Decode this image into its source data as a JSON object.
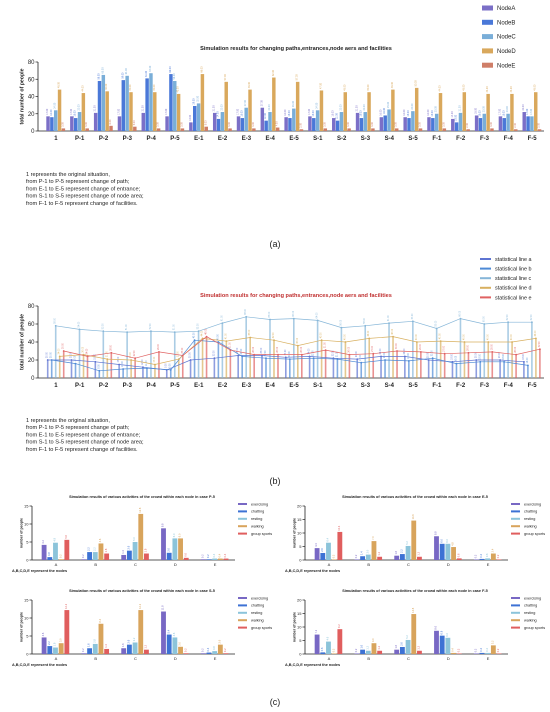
{
  "colors": {
    "A": "#7b6fc7",
    "B": "#4a78d8",
    "C": "#7aaed8",
    "D": "#d9a85c",
    "E": "#cf7e68",
    "lb": "#4d8ad6",
    "la": "#5e74d2",
    "lc": "#86b6d8",
    "ld": "#d8b060",
    "le": "#e06262",
    "act1": "#7868c4",
    "act2": "#3d72d4",
    "act3": "#8cc4da",
    "act4": "#d8a45c",
    "act5": "#e05e5e"
  },
  "panel_a": {
    "title": "Simulation results for changing paths,entrances,node aers and facilities",
    "ylabel": "total number of people",
    "notes": [
      "1 represents the original situation,",
      "from P-1 to P-5 represent change of path;",
      "from E-1 to E-5 represent change of entrance;",
      "from S-1 to S-5 represent change of node area;",
      "from F-1 to F-5 represent change of facilities."
    ],
    "caption": "(a)"
  },
  "panel_b": {
    "title": "Simulation results for changing paths,entrances,node aers and facilities",
    "ylabel": "total number of people",
    "notes": [
      "1 represents the original situation,",
      "from P-1 to P-5 represent change of path;",
      "from E-1 to E-5 represent change of entrance;",
      "from S-1 to S-5 represent change of node area;",
      "from F-1 to F-5 represent change of facilities."
    ],
    "caption": "(b)"
  },
  "panel_c": {
    "caption": "(c)",
    "nodes_note": "A,B,C,D,E represent the nodes"
  },
  "chart_data": [
    {
      "type": "bar",
      "title": "Simulation results for changing paths,entrances,node aers and facilities",
      "ylabel": "total number of people",
      "ylim": [
        0,
        80
      ],
      "yticks": [
        0,
        20,
        40,
        60,
        80
      ],
      "legend_position": "top-right",
      "categories": [
        "1",
        "P-1",
        "P-2",
        "P-3",
        "P-4",
        "P-5",
        "E-1",
        "E-2",
        "E-3",
        "E-4",
        "E-5",
        "S-1",
        "S-2",
        "S-3",
        "S-4",
        "S-5",
        "F-1",
        "F-2",
        "F-3",
        "F-4",
        "F-5"
      ],
      "series": [
        {
          "name": "NodeA",
          "values": [
            17,
            17,
            21,
            17,
            21,
            17,
            10,
            21,
            17,
            27,
            16,
            17,
            15,
            21,
            16,
            16,
            16,
            14,
            18,
            17,
            22
          ]
        },
        {
          "name": "NodeB",
          "values": [
            16,
            15,
            58,
            59,
            61,
            66,
            29,
            14,
            15,
            12,
            15,
            15,
            12,
            15,
            18,
            15,
            15,
            10,
            15,
            15,
            17
          ]
        },
        {
          "name": "NodeC",
          "values": [
            24,
            22,
            65,
            64,
            67,
            58,
            32,
            22,
            27,
            22,
            26,
            24,
            22,
            22,
            25,
            23,
            20,
            21,
            20,
            20,
            17
          ]
        },
        {
          "name": "NodeD",
          "values": [
            48,
            44,
            46,
            45,
            45,
            43,
            66,
            57,
            48,
            62,
            57,
            47,
            45,
            45,
            48,
            50,
            44,
            45,
            43,
            43,
            45
          ]
        },
        {
          "name": "NodeE",
          "values": [
            3,
            3,
            6,
            5,
            3,
            3,
            5,
            3,
            3,
            4,
            2,
            3,
            3,
            3,
            3,
            3,
            3,
            2,
            3,
            2,
            2
          ]
        }
      ]
    },
    {
      "type": "line",
      "title": "Simulation results for changing paths,entrances,node aers and facilities",
      "ylabel": "total number of people",
      "ylim": [
        0,
        80
      ],
      "yticks": [
        0,
        20,
        40,
        60,
        80
      ],
      "legend_position": "top-right",
      "categories": [
        "1",
        "P-1",
        "P-2",
        "P-3",
        "P-4",
        "P-5",
        "E-1",
        "E-2",
        "E-3",
        "E-4",
        "E-5",
        "S-1",
        "S-2",
        "S-3",
        "S-4",
        "S-5",
        "F-1",
        "F-2",
        "F-3",
        "F-4",
        "F-5"
      ],
      "series": [
        {
          "name": "statistical line a",
          "values": [
            20,
            20,
            18,
            15,
            12,
            9,
            20,
            22,
            25,
            25,
            23,
            24,
            22,
            21,
            24,
            24,
            20,
            18,
            20,
            20,
            18
          ]
        },
        {
          "name": "statistical line b",
          "values": [
            20,
            16,
            8,
            10,
            11,
            9,
            42,
            40,
            24,
            22,
            21,
            22,
            21,
            17,
            20,
            19,
            22,
            16,
            18,
            18,
            14
          ]
        },
        {
          "name": "statistical line c",
          "values": [
            58,
            54,
            52,
            51,
            52,
            51,
            52,
            61,
            68,
            65,
            66,
            64,
            56,
            58,
            61,
            63,
            55,
            66,
            60,
            62,
            62
          ]
        },
        {
          "name": "statistical line d",
          "values": [
            24,
            26,
            21,
            20,
            15,
            21,
            44,
            41,
            45,
            42,
            36,
            42,
            40,
            44,
            46,
            40,
            41,
            40,
            40,
            40,
            44
          ]
        },
        {
          "name": "statistical line e",
          "values": [
            30,
            24,
            28,
            22,
            29,
            25,
            46,
            31,
            26,
            26,
            26,
            31,
            26,
            27,
            30,
            29,
            27,
            28,
            29,
            26,
            32
          ]
        }
      ]
    },
    {
      "type": "bar",
      "title": "Simulation results of various activities of the crowd within each node in case P-5",
      "ylabel": "number of people",
      "ylim": [
        0,
        15
      ],
      "yticks": [
        0,
        5,
        10,
        15
      ],
      "categories": [
        "A",
        "B",
        "C",
        "D",
        "E"
      ],
      "series": [
        {
          "name": "exercising",
          "values": [
            4.2,
            0.2,
            1.4,
            8.8,
            0.2
          ]
        },
        {
          "name": "chatting",
          "values": [
            0.8,
            2.2,
            2.6,
            2.0,
            0.2
          ]
        },
        {
          "name": "resting",
          "values": [
            4.8,
            2.2,
            5.0,
            6.0,
            0.4
          ]
        },
        {
          "name": "walking",
          "values": [
            0.2,
            4.6,
            12.8,
            6.0,
            0.4
          ]
        },
        {
          "name": "group sports",
          "values": [
            5.6,
            1.8,
            1.8,
            0.6,
            0.4
          ]
        }
      ]
    },
    {
      "type": "bar",
      "title": "Simulation results of various activities of the crowd within each node in case E-5",
      "ylabel": "number of people",
      "ylim": [
        0,
        20
      ],
      "yticks": [
        0,
        5,
        10,
        15,
        20
      ],
      "categories": [
        "A",
        "B",
        "C",
        "D",
        "E"
      ],
      "series": [
        {
          "name": "exercising",
          "values": [
            4.4,
            0.2,
            1.6,
            8.8,
            0.2
          ]
        },
        {
          "name": "chatting",
          "values": [
            2.6,
            1.4,
            2.2,
            6.0,
            0.4
          ]
        },
        {
          "name": "resting",
          "values": [
            6.4,
            2.0,
            5.2,
            6.0,
            0.6
          ]
        },
        {
          "name": "walking",
          "values": [
            0.2,
            7.0,
            14.6,
            4.8,
            2.4
          ]
        },
        {
          "name": "group sports",
          "values": [
            10.4,
            1.2,
            1.2,
            0.6,
            0.2
          ]
        }
      ]
    },
    {
      "type": "bar",
      "title": "Simulation results of various activities of the crowd within each node in case S-5",
      "ylabel": "number of people",
      "ylim": [
        0,
        15
      ],
      "yticks": [
        0,
        5,
        10,
        15
      ],
      "categories": [
        "A",
        "B",
        "C",
        "D",
        "E"
      ],
      "series": [
        {
          "name": "exercising",
          "values": [
            4.6,
            0.2,
            1.6,
            11.8,
            0.2
          ]
        },
        {
          "name": "chatting",
          "values": [
            2.2,
            1.6,
            2.6,
            5.4,
            0.4
          ]
        },
        {
          "name": "resting",
          "values": [
            1.8,
            2.8,
            3.2,
            4.6,
            0.8
          ]
        },
        {
          "name": "walking",
          "values": [
            3.0,
            8.4,
            12.2,
            2.0,
            2.6
          ]
        },
        {
          "name": "group sports",
          "values": [
            12.2,
            1.4,
            1.2,
            0.2,
            0.2
          ]
        }
      ]
    },
    {
      "type": "bar",
      "title": "Simulation results of various activities of the crowd within each node in case F-5",
      "ylabel": "number of people",
      "ylim": [
        0,
        20
      ],
      "yticks": [
        0,
        5,
        10,
        15,
        20
      ],
      "categories": [
        "A",
        "B",
        "C",
        "D",
        "E"
      ],
      "series": [
        {
          "name": "exercising",
          "values": [
            7.2,
            0.2,
            1.6,
            8.6,
            0.2
          ]
        },
        {
          "name": "chatting",
          "values": [
            0.6,
            1.6,
            2.6,
            6.8,
            0.4
          ]
        },
        {
          "name": "resting",
          "values": [
            4.6,
            1.2,
            5.2,
            6.0,
            0.4
          ]
        },
        {
          "name": "walking",
          "values": [
            0.2,
            4.0,
            14.8,
            0.4,
            3.2
          ]
        },
        {
          "name": "group sports",
          "values": [
            9.2,
            1.2,
            1.2,
            0.2,
            0.2
          ]
        }
      ]
    }
  ]
}
